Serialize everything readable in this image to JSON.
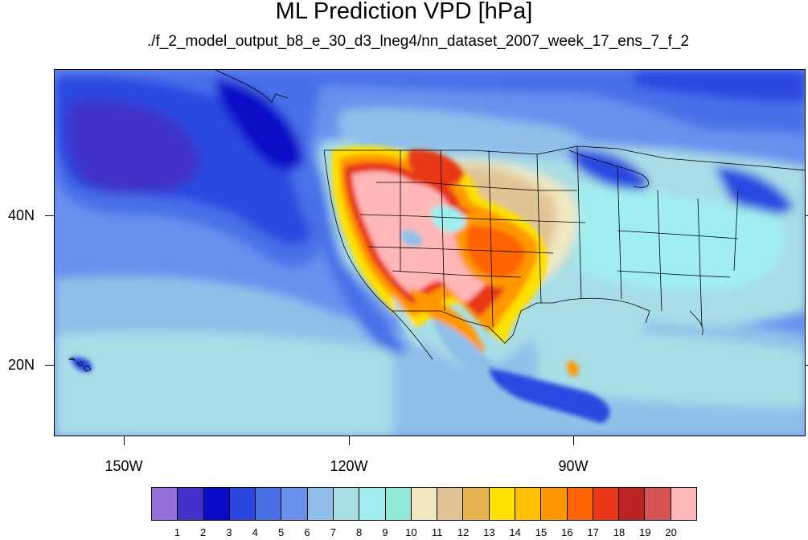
{
  "title": "ML Prediction VPD [hPa]",
  "subtitle": "./f_2_model_output_b8_e_30_d3_lneg4/nn_dataset_2007_week_17_ens_7_f_2",
  "lat_labels": [
    "40N",
    "20N"
  ],
  "lon_labels": [
    "150W",
    "120W",
    "90W"
  ],
  "colorbar": {
    "labels": [
      "1",
      "2",
      "3",
      "4",
      "5",
      "6",
      "7",
      "8",
      "9",
      "10",
      "11",
      "12",
      "13",
      "14",
      "15",
      "16",
      "17",
      "18",
      "19",
      "20"
    ],
    "colors": [
      "#9370db",
      "#4030c8",
      "#0a0ac8",
      "#2a48e0",
      "#4a70e8",
      "#6a90ee",
      "#90c0ea",
      "#a8dde6",
      "#a0eef0",
      "#90e8d8",
      "#f2e8c0",
      "#e0c496",
      "#e8b450",
      "#ffe000",
      "#ffc000",
      "#ff9800",
      "#ff6400",
      "#e83818",
      "#bc2424",
      "#d45454",
      "#ffb6b6"
    ]
  }
}
